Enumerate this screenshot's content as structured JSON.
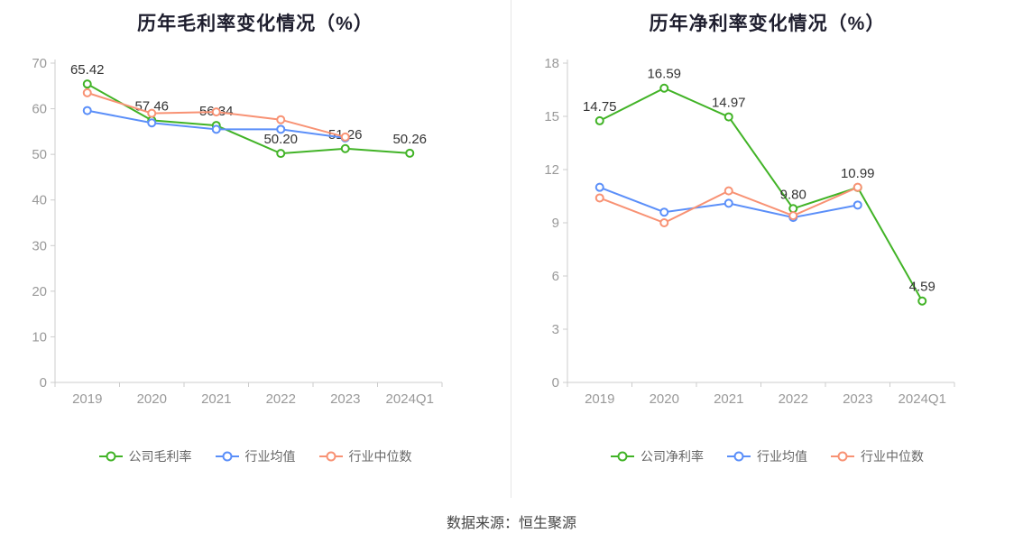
{
  "page": {
    "footer": "数据来源：恒生聚源",
    "background": "#ffffff",
    "divider_color": "#e6e6e6"
  },
  "colors": {
    "company": "#41b326",
    "mean": "#5b8ff9",
    "median": "#f89274",
    "axis": "#cccccc",
    "axis_text": "#999999",
    "label_text": "#333333",
    "title_text": "#1e1e2e"
  },
  "chart_data": [
    {
      "type": "line",
      "title": "历年毛利率变化情况（%）",
      "categories": [
        "2019",
        "2020",
        "2021",
        "2022",
        "2023",
        "2024Q1"
      ],
      "y_ticks": [
        0,
        10,
        20,
        30,
        40,
        50,
        60,
        70
      ],
      "ylim": [
        0,
        70
      ],
      "grid": false,
      "legend_position": "bottom",
      "series": [
        {
          "name": "公司毛利率",
          "color_key": "company",
          "values": [
            65.42,
            57.46,
            56.34,
            50.2,
            51.26,
            50.26
          ],
          "labels": [
            "65.42",
            "57.46",
            "56.34",
            "50.20",
            "51.26",
            "50.26"
          ]
        },
        {
          "name": "行业均值",
          "color_key": "mean",
          "values": [
            59.6,
            56.9,
            55.5,
            55.5,
            53.6,
            null
          ],
          "labels": null
        },
        {
          "name": "行业中位数",
          "color_key": "median",
          "values": [
            63.5,
            59.0,
            59.3,
            57.6,
            53.8,
            null
          ],
          "labels": null
        }
      ]
    },
    {
      "type": "line",
      "title": "历年净利率变化情况（%）",
      "categories": [
        "2019",
        "2020",
        "2021",
        "2022",
        "2023",
        "2024Q1"
      ],
      "y_ticks": [
        0,
        3,
        6,
        9,
        12,
        15,
        18
      ],
      "ylim": [
        0,
        18
      ],
      "grid": false,
      "legend_position": "bottom",
      "series": [
        {
          "name": "公司净利率",
          "color_key": "company",
          "values": [
            14.75,
            16.59,
            14.97,
            9.8,
            10.99,
            4.59
          ],
          "labels": [
            "14.75",
            "16.59",
            "14.97",
            "9.80",
            "10.99",
            "4.59"
          ]
        },
        {
          "name": "行业均值",
          "color_key": "mean",
          "values": [
            11.0,
            9.6,
            10.1,
            9.3,
            10.0,
            null
          ],
          "labels": null
        },
        {
          "name": "行业中位数",
          "color_key": "median",
          "values": [
            10.4,
            9.0,
            10.8,
            9.4,
            11.0,
            null
          ],
          "labels": null
        }
      ]
    }
  ]
}
